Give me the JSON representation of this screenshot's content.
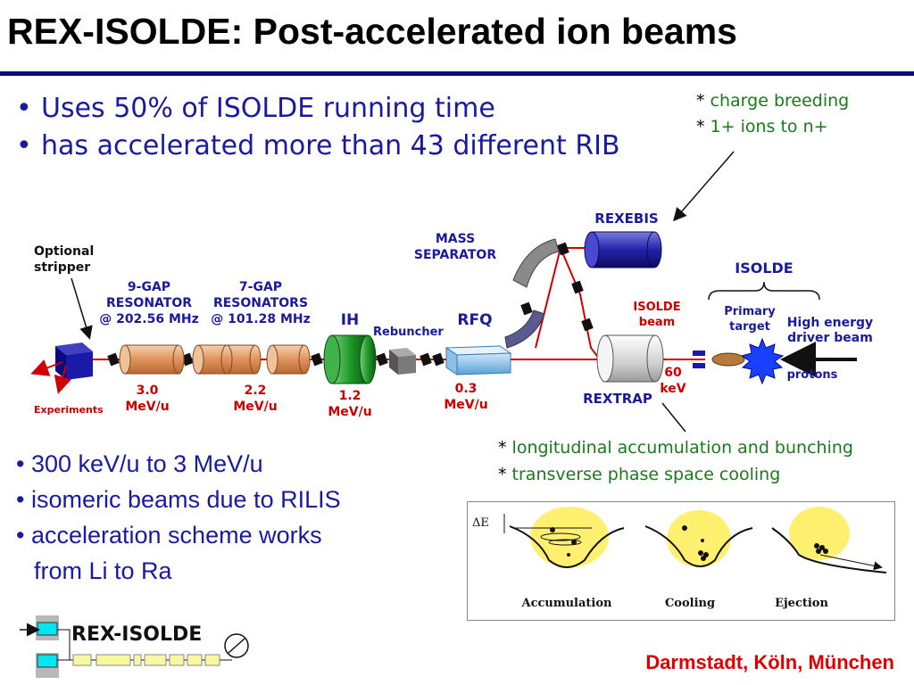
{
  "title": "REX-ISOLDE: Post-accelerated ion beams",
  "top_bullets": [
    "Uses 50% of ISOLDE running time",
    "has accelerated more than 43 different RIB"
  ],
  "charge_breeding_notes": [
    "charge breeding",
    "1+ ions to n+"
  ],
  "rextrap_notes": [
    "longitudinal accumulation and bunching",
    "transverse phase space cooling"
  ],
  "bottom_bullets": [
    "300 keV/u to 3 MeV/u",
    "isomeric beams due to RILIS",
    "acceleration scheme works",
    "from Li to Ra"
  ],
  "diagram": {
    "optional_stripper": [
      "Optional",
      "stripper"
    ],
    "experiments": "Experiments",
    "gap9": [
      "9-GAP",
      "RESONATOR",
      "@ 202.56 MHz"
    ],
    "gap7": [
      "7-GAP",
      "RESONATORS",
      "@ 101.28 MHz"
    ],
    "ih": "IH",
    "rebuncher": "Rebuncher",
    "rfq": "RFQ",
    "mass_separator": [
      "MASS",
      "SEPARATOR"
    ],
    "rexebis": "REXEBIS",
    "isolde": "ISOLDE",
    "isolde_beam": [
      "ISOLDE",
      "beam"
    ],
    "primary_target": [
      "Primary",
      "target"
    ],
    "driver_beam": [
      "High energy",
      "driver beam"
    ],
    "protons": "protons",
    "rextrap": "REXTRAP",
    "energy_60": [
      "60",
      "keV"
    ],
    "energy_3": [
      "3.0",
      "MeV/u"
    ],
    "energy_22": [
      "2.2",
      "MeV/u"
    ],
    "energy_12": [
      "1.2",
      "MeV/u"
    ],
    "energy_03": [
      "0.3",
      "MeV/u"
    ]
  },
  "inset": {
    "delta_e": "ΔE",
    "labels": [
      "Accumulation",
      "Cooling",
      "Ejection"
    ]
  },
  "logo_text": "REX-ISOLDE",
  "footer": "Darmstadt, Köln, München",
  "colors": {
    "title_rule": "#0a0a7a",
    "bullet_text": "#1a1aa0",
    "note_text": "#1a7a1a",
    "diagram_label": "#1a1a9a",
    "energy_label": "#cc0000",
    "footer": "#e00000"
  }
}
